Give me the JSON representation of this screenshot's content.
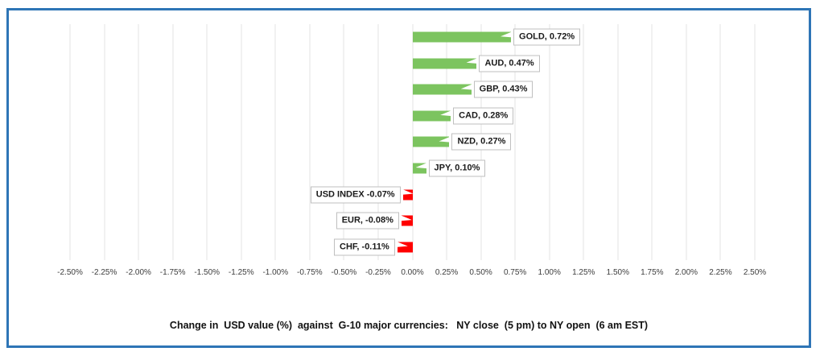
{
  "frame": {
    "border_color": "#2E75B6",
    "background": "#FFFFFF"
  },
  "chart_data": {
    "type": "bar",
    "orientation": "horizontal",
    "title": "Change in  USD value (%)  against  G-10 major currencies:   NY close  (5 pm) to NY open  (6 am EST)",
    "categories": [
      "GOLD",
      "AUD",
      "GBP",
      "CAD",
      "NZD",
      "JPY",
      "USD INDEX",
      "EUR",
      "CHF"
    ],
    "values": [
      0.72,
      0.47,
      0.43,
      0.28,
      0.27,
      0.1,
      -0.07,
      -0.08,
      -0.11
    ],
    "data_labels": [
      "GOLD, 0.72%",
      "AUD, 0.47%",
      "GBP, 0.43%",
      "CAD, 0.28%",
      "NZD, 0.27%",
      "JPY, 0.10%",
      "USD INDEX -0.07%",
      "EUR, -0.08%",
      "CHF, -0.11%"
    ],
    "xlim": [
      -2.5,
      2.5
    ],
    "tick_step": 0.25,
    "x_ticks": [
      "-2.50%",
      "-2.25%",
      "-2.00%",
      "-1.75%",
      "-1.50%",
      "-1.25%",
      "-1.00%",
      "-0.75%",
      "-0.50%",
      "-0.25%",
      "0.00%",
      "0.25%",
      "0.50%",
      "0.75%",
      "1.00%",
      "1.25%",
      "1.50%",
      "1.75%",
      "2.00%",
      "2.25%",
      "2.50%"
    ],
    "grid": true,
    "legend": "none",
    "positive_color": "#7CC45F",
    "negative_color": "#FF0000",
    "gridline_color": "#E3E3E3",
    "label_box_border_color": "#BFBFBF",
    "tick_text_color": "#3d3d3d"
  }
}
